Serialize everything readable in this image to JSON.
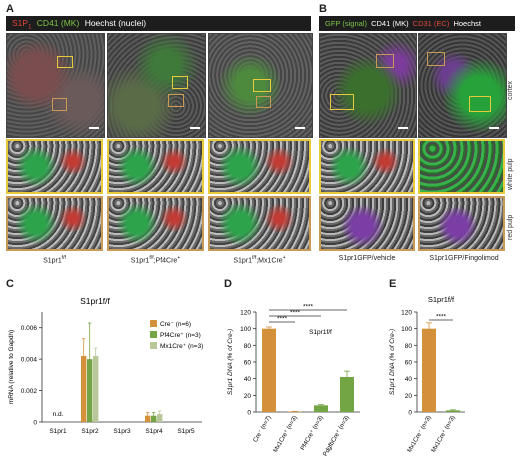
{
  "panels": {
    "A": {
      "label": "A",
      "header": {
        "s1p1": "S1P",
        "s1p1_sub": "1",
        "cd41": "CD41 (MK)",
        "hoechst": "Hoechst (nuclei)"
      },
      "captions": [
        "S1pr1",
        "S1pr1",
        "S1pr1"
      ],
      "caption_sups": [
        "f/f",
        "f/f",
        "f/f"
      ],
      "caption_suffix": [
        "",
        ";Pf4Cre",
        ";Mx1Cre"
      ],
      "caption_suffix_sup": [
        "",
        "+",
        "+"
      ]
    },
    "B": {
      "label": "B",
      "header": {
        "gfp": "GFP (signal)",
        "cd41": "CD41 (MK)",
        "cd31": "CD31 (EC)",
        "hoechst": "Hoechst"
      },
      "row_labels": [
        "cortex",
        "white pulp",
        "red pulp"
      ],
      "captions": [
        "S1pr1GFP/vehicle",
        "S1pr1GFP/Fingolimod"
      ]
    },
    "C": {
      "label": "C"
    },
    "D": {
      "label": "D"
    },
    "E": {
      "label": "E"
    }
  },
  "colors": {
    "red": "#e0473c",
    "green": "#7fc44a",
    "white": "#ffffff",
    "yellow_box": "#e7cb3c",
    "orange_box": "#c89a55",
    "cre_neg": "#d4913b",
    "pf4cre": "#74a544",
    "mx1cre": "#b9c79a"
  },
  "chart_data": [
    {
      "type": "bar",
      "panel": "C",
      "title": "S1pr1f/f",
      "ylabel": "mRNA (relative to Gapdh)",
      "categories": [
        "S1pr1",
        "S1pr2",
        "S1pr3",
        "S1pr4",
        "S1pr5"
      ],
      "ylim": [
        0,
        0.007
      ],
      "yticks": [
        "0",
        "0.002",
        "0.004",
        "0.006"
      ],
      "annotations": [
        {
          "category": "S1pr1",
          "text": "n.d."
        }
      ],
      "series": [
        {
          "name": "Cre⁻ (n=6)",
          "values": [
            0,
            0.0042,
            0,
            0.0004,
            0
          ],
          "errors": [
            0,
            0.0011,
            0,
            0.0002,
            0
          ]
        },
        {
          "name": "Pf4Cre⁺ (n=3)",
          "values": [
            0,
            0.004,
            0,
            0.0004,
            0
          ],
          "errors": [
            0,
            0.0023,
            0,
            0.0002,
            0
          ]
        },
        {
          "name": "Mx1Cre⁺ (n=3)",
          "values": [
            0,
            0.0042,
            0,
            0.0005,
            0
          ],
          "errors": [
            0,
            0.0005,
            0,
            0.0002,
            0
          ]
        }
      ]
    },
    {
      "type": "bar",
      "panel": "D",
      "ylabel": "S1pr1 DNA (% of Cre-)",
      "ylim": [
        0,
        120
      ],
      "yticks": [
        "0",
        "20",
        "40",
        "60",
        "80",
        "100",
        "120"
      ],
      "categories": [
        "Cre⁻ (n=7)",
        "Mx1Cre⁺ (n=3)",
        "Pf4Cre⁺ (n=3)",
        "PdgfbCre⁺ (n=3)"
      ],
      "values": [
        100,
        0.5,
        8,
        42
      ],
      "errors": [
        2,
        0.3,
        0.8,
        7
      ],
      "colors": [
        "#d4913b",
        "#d4913b",
        "#74a544",
        "#74a544"
      ],
      "inner_label": "S1pr1f/f",
      "significance": [
        "****",
        "****",
        "****"
      ]
    },
    {
      "type": "bar",
      "panel": "E",
      "title": "S1pr1f/f",
      "ylabel": "S1pr1 DNA (% of Cre-)",
      "ylim": [
        0,
        120
      ],
      "yticks": [
        "0",
        "20",
        "40",
        "60",
        "80",
        "100",
        "120"
      ],
      "categories": [
        "Mx1Cre⁻ (n=3)",
        "Mx1Cre⁺ (n=3)"
      ],
      "values": [
        100,
        2
      ],
      "errors": [
        7,
        0.6
      ],
      "colors": [
        "#d4913b",
        "#74a544"
      ],
      "significance": [
        "****"
      ]
    }
  ]
}
